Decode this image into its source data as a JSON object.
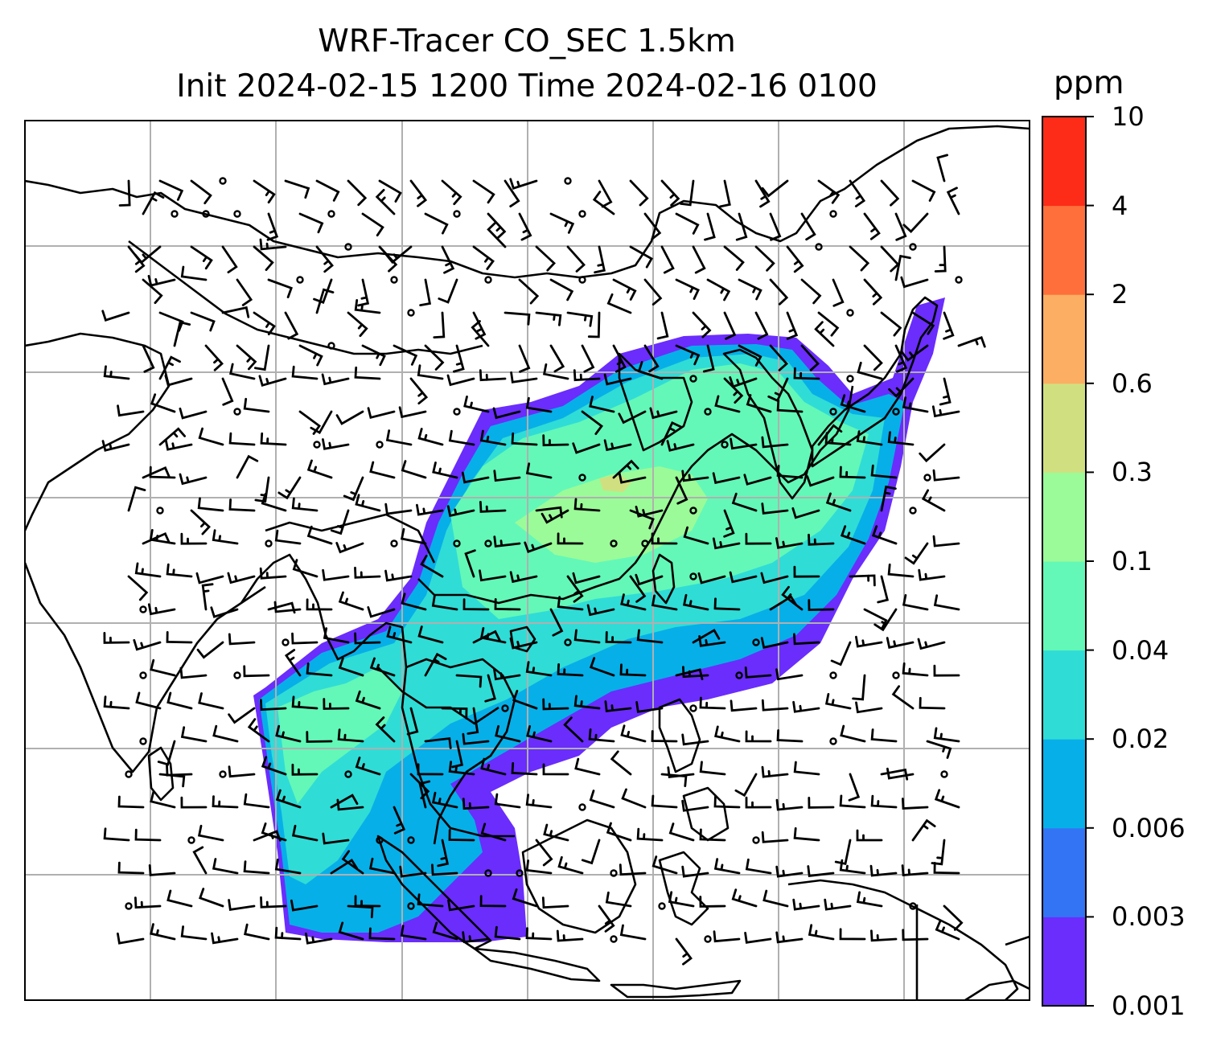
{
  "title": {
    "line1": "WRF-Tracer CO_SEC 1.5km",
    "line2": "Init 2024-02-15 1200 Time 2024-02-16 0100"
  },
  "colorbar": {
    "unit": "ppm",
    "levels": [
      "0.001",
      "0.003",
      "0.006",
      "0.02",
      "0.04",
      "0.1",
      "0.3",
      "0.6",
      "2",
      "4",
      "10"
    ],
    "colors": [
      "#6a2dfc",
      "#3374f5",
      "#07afe8",
      "#30dcd6",
      "#63f8b8",
      "#9bfb98",
      "#d0e080",
      "#fcae62",
      "#fe6f3c",
      "#fc2c18"
    ]
  },
  "map": {
    "frame_color": "#000000",
    "gridline_color": "#b0b0b0",
    "coastline_color": "#000000",
    "wind_barb_color": "#000000"
  }
}
